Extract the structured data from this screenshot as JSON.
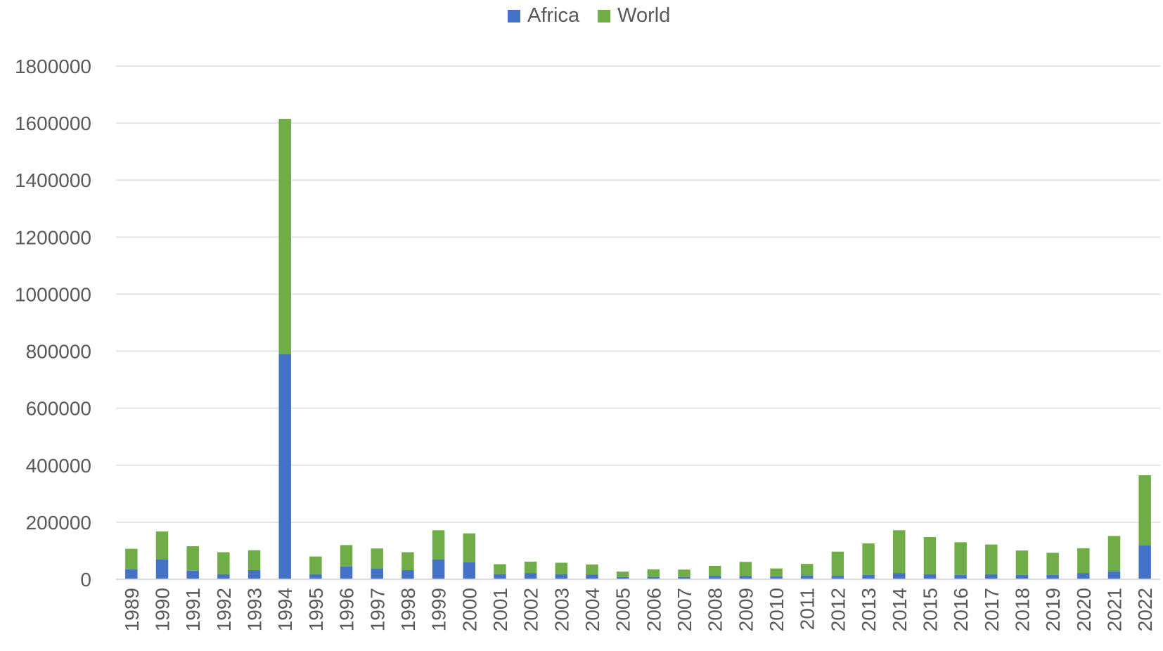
{
  "chart_data": {
    "type": "bar",
    "stacked": true,
    "categories": [
      "1989",
      "1990",
      "1991",
      "1992",
      "1993",
      "1994",
      "1995",
      "1996",
      "1997",
      "1998",
      "1999",
      "2000",
      "2001",
      "2002",
      "2003",
      "2004",
      "2005",
      "2006",
      "2007",
      "2008",
      "2009",
      "2010",
      "2011",
      "2012",
      "2013",
      "2014",
      "2015",
      "2016",
      "2017",
      "2018",
      "2019",
      "2020",
      "2021",
      "2022"
    ],
    "series": [
      {
        "name": "Africa",
        "color": "#4472c4",
        "values": [
          35000,
          70000,
          30000,
          18000,
          32000,
          790000,
          18000,
          45000,
          38000,
          32000,
          70000,
          60000,
          18000,
          22000,
          18000,
          16000,
          8000,
          8000,
          8000,
          12000,
          12000,
          10000,
          14000,
          12000,
          15000,
          22000,
          18000,
          15000,
          18000,
          15000,
          15000,
          22000,
          28000,
          120000
        ]
      },
      {
        "name": "World",
        "color": "#70ad47",
        "values": [
          72000,
          98000,
          86000,
          77000,
          70000,
          825000,
          62000,
          75000,
          70000,
          63000,
          102000,
          101000,
          35000,
          40000,
          40000,
          36000,
          19000,
          27000,
          26000,
          35000,
          49000,
          28000,
          40000,
          85000,
          111000,
          150000,
          130000,
          115000,
          104000,
          86000,
          78000,
          87000,
          124000,
          245000
        ]
      }
    ],
    "ylim": [
      0,
      1800000
    ],
    "yticks": [
      0,
      200000,
      400000,
      600000,
      800000,
      1000000,
      1200000,
      1400000,
      1600000,
      1800000
    ],
    "grid": true,
    "legend_position": "top-center",
    "title": "",
    "xlabel": "",
    "ylabel": ""
  }
}
